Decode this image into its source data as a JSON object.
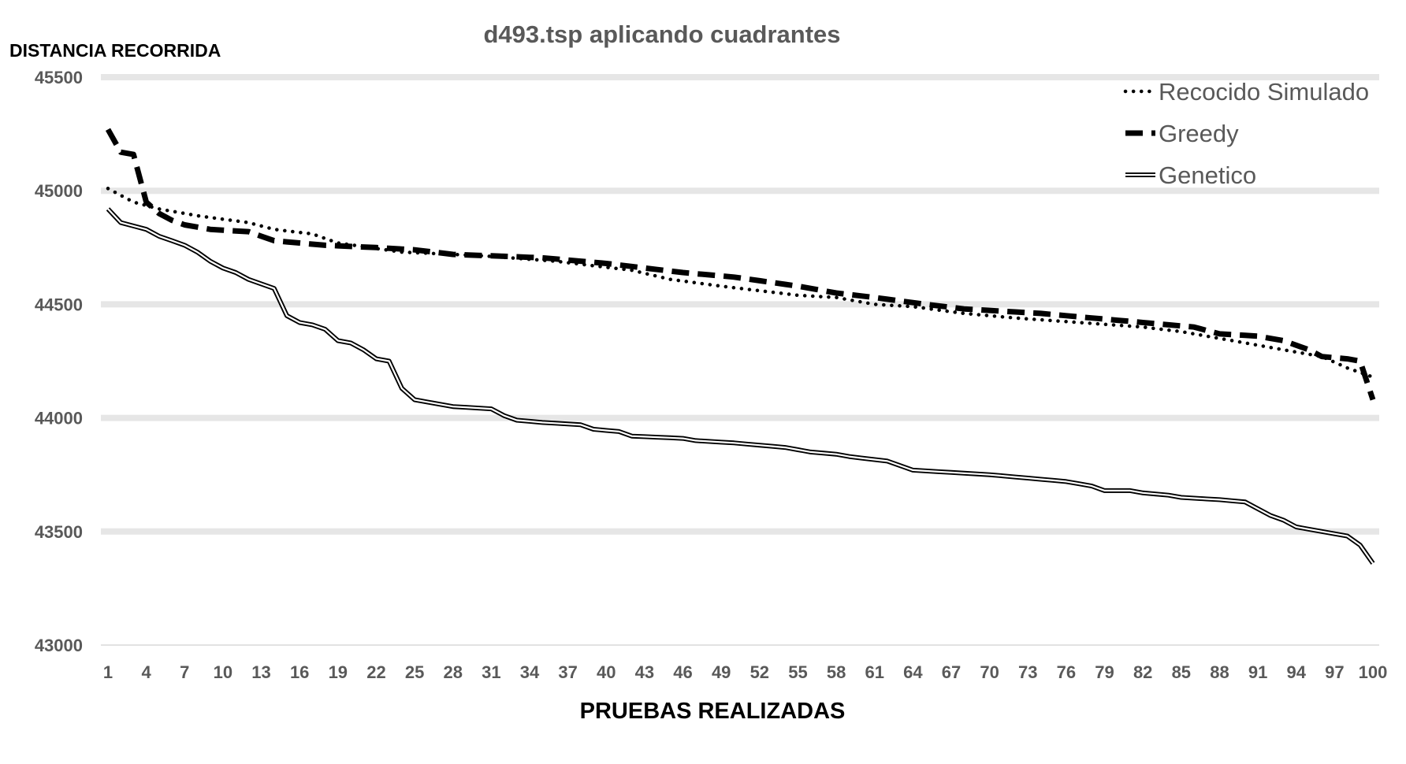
{
  "chart_data": {
    "type": "line",
    "title": "d493.tsp aplicando cuadrantes",
    "ylabel": "DISTANCIA RECORRIDA",
    "xlabel": "PRUEBAS REALIZADAS",
    "ylim": [
      43000,
      45500
    ],
    "xlim": [
      1,
      100
    ],
    "yticks": [
      43000,
      43500,
      44000,
      44500,
      45000,
      45500
    ],
    "xtick_labels": [
      "1",
      "4",
      "7",
      "10",
      "13",
      "16",
      "19",
      "22",
      "25",
      "28",
      "31",
      "34",
      "37",
      "40",
      "43",
      "46",
      "49",
      "52",
      "55",
      "58",
      "61",
      "64",
      "67",
      "70",
      "73",
      "76",
      "79",
      "82",
      "85",
      "88",
      "91",
      "94",
      "97",
      "100"
    ],
    "grid": "horizontal",
    "legend_position": "top-right",
    "series": [
      {
        "name": "Recocido Simulado",
        "style": "dotted",
        "color": "#000000",
        "anchors": [
          [
            1,
            45010
          ],
          [
            3,
            44950
          ],
          [
            5,
            44920
          ],
          [
            8,
            44890
          ],
          [
            12,
            44860
          ],
          [
            14,
            44830
          ],
          [
            17,
            44810
          ],
          [
            19,
            44770
          ],
          [
            24,
            44730
          ],
          [
            30,
            44715
          ],
          [
            36,
            44690
          ],
          [
            42,
            44650
          ],
          [
            45,
            44610
          ],
          [
            49,
            44580
          ],
          [
            55,
            44540
          ],
          [
            58,
            44530
          ],
          [
            61,
            44500
          ],
          [
            64,
            44490
          ],
          [
            68,
            44460
          ],
          [
            72,
            44440
          ],
          [
            77,
            44420
          ],
          [
            82,
            44400
          ],
          [
            85,
            44380
          ],
          [
            88,
            44350
          ],
          [
            91,
            44320
          ],
          [
            93,
            44300
          ],
          [
            96,
            44270
          ],
          [
            98,
            44220
          ],
          [
            100,
            44180
          ]
        ]
      },
      {
        "name": "Greedy",
        "style": "dashed",
        "color": "#000000",
        "anchors": [
          [
            1,
            45270
          ],
          [
            2,
            45170
          ],
          [
            3,
            45160
          ],
          [
            4,
            44950
          ],
          [
            5,
            44900
          ],
          [
            6,
            44870
          ],
          [
            7,
            44850
          ],
          [
            9,
            44830
          ],
          [
            12,
            44820
          ],
          [
            14,
            44780
          ],
          [
            16,
            44770
          ],
          [
            18,
            44760
          ],
          [
            22,
            44750
          ],
          [
            25,
            44740
          ],
          [
            28,
            44720
          ],
          [
            35,
            44705
          ],
          [
            40,
            44680
          ],
          [
            46,
            44640
          ],
          [
            50,
            44620
          ],
          [
            55,
            44580
          ],
          [
            58,
            44550
          ],
          [
            61,
            44530
          ],
          [
            65,
            44500
          ],
          [
            68,
            44480
          ],
          [
            74,
            44460
          ],
          [
            78,
            44440
          ],
          [
            82,
            44420
          ],
          [
            86,
            44400
          ],
          [
            88,
            44370
          ],
          [
            91,
            44360
          ],
          [
            93,
            44340
          ],
          [
            95,
            44300
          ],
          [
            96,
            44270
          ],
          [
            98,
            44260
          ],
          [
            99,
            44250
          ],
          [
            100,
            44080
          ]
        ]
      },
      {
        "name": "Genetico",
        "style": "double",
        "color": "#000000",
        "anchors": [
          [
            1,
            44920
          ],
          [
            2,
            44860
          ],
          [
            4,
            44830
          ],
          [
            5,
            44800
          ],
          [
            6,
            44780
          ],
          [
            7,
            44760
          ],
          [
            8,
            44730
          ],
          [
            9,
            44690
          ],
          [
            10,
            44660
          ],
          [
            11,
            44640
          ],
          [
            12,
            44610
          ],
          [
            13,
            44590
          ],
          [
            14,
            44570
          ],
          [
            15,
            44450
          ],
          [
            16,
            44420
          ],
          [
            17,
            44410
          ],
          [
            18,
            44390
          ],
          [
            19,
            44340
          ],
          [
            20,
            44330
          ],
          [
            21,
            44300
          ],
          [
            22,
            44260
          ],
          [
            23,
            44250
          ],
          [
            24,
            44130
          ],
          [
            25,
            44080
          ],
          [
            26,
            44070
          ],
          [
            27,
            44060
          ],
          [
            28,
            44050
          ],
          [
            31,
            44040
          ],
          [
            32,
            44010
          ],
          [
            33,
            43990
          ],
          [
            35,
            43980
          ],
          [
            38,
            43970
          ],
          [
            39,
            43950
          ],
          [
            41,
            43940
          ],
          [
            42,
            43920
          ],
          [
            46,
            43910
          ],
          [
            47,
            43900
          ],
          [
            50,
            43890
          ],
          [
            54,
            43870
          ],
          [
            56,
            43850
          ],
          [
            58,
            43840
          ],
          [
            59,
            43830
          ],
          [
            62,
            43810
          ],
          [
            63,
            43790
          ],
          [
            64,
            43770
          ],
          [
            67,
            43760
          ],
          [
            70,
            43750
          ],
          [
            72,
            43740
          ],
          [
            74,
            43730
          ],
          [
            76,
            43720
          ],
          [
            78,
            43700
          ],
          [
            79,
            43680
          ],
          [
            81,
            43680
          ],
          [
            82,
            43670
          ],
          [
            84,
            43660
          ],
          [
            85,
            43650
          ],
          [
            88,
            43640
          ],
          [
            90,
            43630
          ],
          [
            91,
            43600
          ],
          [
            92,
            43570
          ],
          [
            93,
            43550
          ],
          [
            94,
            43520
          ],
          [
            96,
            43500
          ],
          [
            98,
            43480
          ],
          [
            99,
            43440
          ],
          [
            100,
            43360
          ]
        ]
      }
    ]
  }
}
